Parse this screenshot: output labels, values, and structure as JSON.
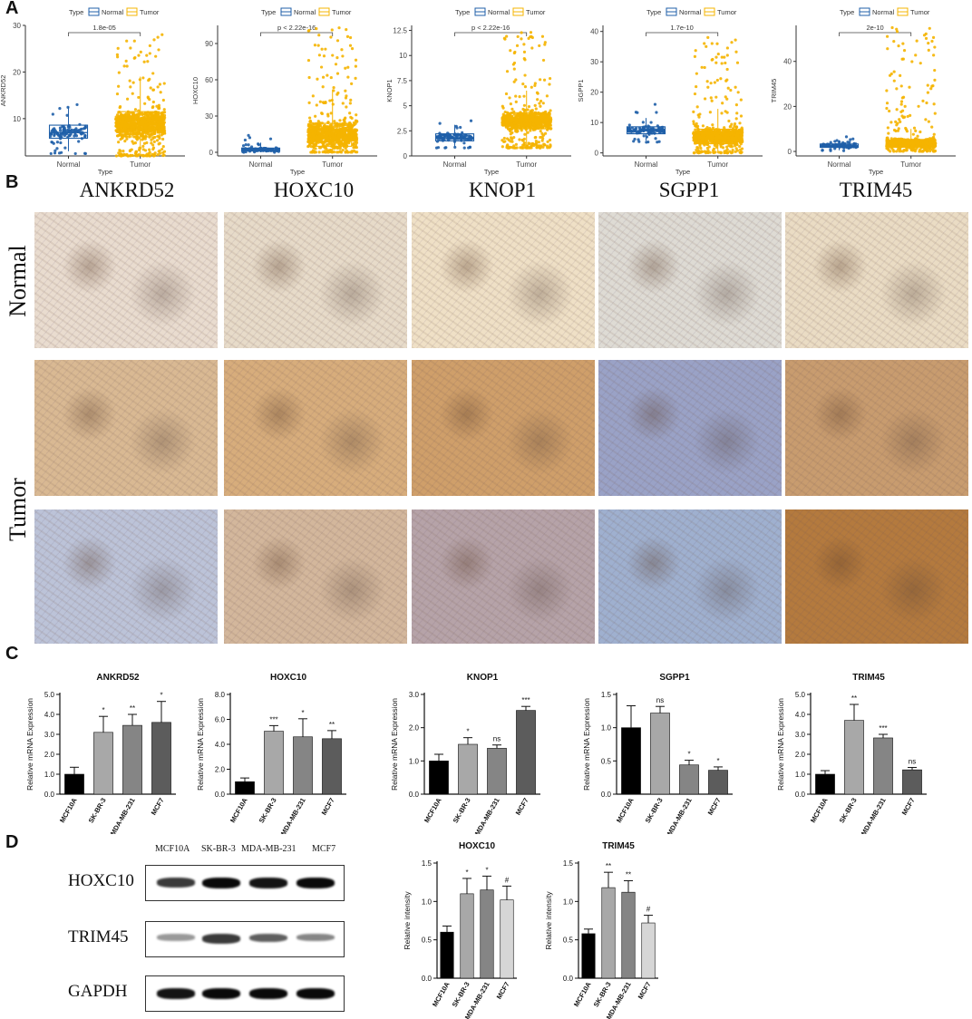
{
  "panels": {
    "A": "A",
    "B": "B",
    "C": "C",
    "D": "D"
  },
  "colors": {
    "normal": "#1f5fa8",
    "tumor": "#f5b400"
  },
  "panelA": {
    "legend_title": "Type",
    "legend_normal": "Normal",
    "legend_tumor": "Tumor",
    "xlabel": "Type",
    "plots": [
      {
        "gene": "ANKRD52",
        "ylabel": "ANKRD52",
        "pval": "1.8e-05",
        "yticks": [
          10,
          20,
          30
        ],
        "ylim": [
          2,
          30
        ],
        "normal": {
          "q1": 5.8,
          "median": 7.0,
          "q3": 8.6,
          "wmin": 3.0,
          "wmax": 12.5,
          "points_min": 2.5,
          "points_max": 13.0
        },
        "tumor": {
          "q1": 6.1,
          "median": 8.7,
          "q3": 11.5,
          "wmin": 2.5,
          "wmax": 19.0,
          "points_min": 2.0,
          "points_max": 28.0
        }
      },
      {
        "gene": "HOXC10",
        "ylabel": "HOXC10",
        "pval": "p < 2.22e-16",
        "yticks": [
          0,
          30,
          60,
          90
        ],
        "ylim": [
          -3,
          105
        ],
        "normal": {
          "q1": 1.0,
          "median": 2.0,
          "q3": 3.5,
          "wmin": 0,
          "wmax": 8.0,
          "points_min": 0,
          "points_max": 14.0
        },
        "tumor": {
          "q1": 5.0,
          "median": 12.0,
          "q3": 24.0,
          "wmin": 0,
          "wmax": 52.0,
          "points_min": 0,
          "points_max": 103.0
        }
      },
      {
        "gene": "KNOP1",
        "ylabel": "KNOP1",
        "pval": "p < 2.22e-16",
        "yticks": [
          0.0,
          2.5,
          5.0,
          7.5,
          10.0,
          12.5
        ],
        "ylim": [
          0,
          13
        ],
        "normal": {
          "q1": 1.5,
          "median": 1.8,
          "q3": 2.2,
          "wmin": 0.9,
          "wmax": 3.1,
          "points_min": 0.8,
          "points_max": 3.5
        },
        "tumor": {
          "q1": 2.7,
          "median": 3.5,
          "q3": 4.3,
          "wmin": 1.0,
          "wmax": 6.5,
          "points_min": 0.8,
          "points_max": 12.3
        }
      },
      {
        "gene": "SGPP1",
        "ylabel": "SGPP1",
        "pval": "1.7e-10",
        "yticks": [
          0,
          10,
          20,
          30,
          40
        ],
        "ylim": [
          -1,
          42
        ],
        "normal": {
          "q1": 6.3,
          "median": 7.3,
          "q3": 8.6,
          "wmin": 4.0,
          "wmax": 11.5,
          "points_min": 3.5,
          "points_max": 16.0
        },
        "tumor": {
          "q1": 3.0,
          "median": 5.0,
          "q3": 7.8,
          "wmin": 0,
          "wmax": 14.5,
          "points_min": 0,
          "points_max": 38.0
        }
      },
      {
        "gene": "TRIM45",
        "ylabel": "TRIM45",
        "pval": "2e-10",
        "yticks": [
          0,
          20,
          40
        ],
        "ylim": [
          -2,
          56
        ],
        "normal": {
          "q1": 1.8,
          "median": 2.5,
          "q3": 3.3,
          "wmin": 0.5,
          "wmax": 5.0,
          "points_min": 0.3,
          "points_max": 6.5
        },
        "tumor": {
          "q1": 2.0,
          "median": 3.5,
          "q3": 5.3,
          "wmin": 0,
          "wmax": 10.0,
          "points_min": 0,
          "points_max": 55.0
        }
      }
    ]
  },
  "panelB": {
    "genes": [
      "ANKRD52",
      "HOXC10",
      "KNOP1",
      "SGPP1",
      "TRIM45"
    ],
    "row_normal": "Normal",
    "row_tumor": "Tumor",
    "tile_colors": [
      [
        "#e9dccf",
        "#e7dbc9",
        "#efe0c6",
        "#dedbd4",
        "#eadcc4"
      ],
      [
        "#d9b993",
        "#d7ad7c",
        "#cf9f6a",
        "#9aa2c6",
        "#c89c6f"
      ],
      [
        "#bcc3d8",
        "#d3b79c",
        "#b6a3a8",
        "#9fb0cf",
        "#b47a3e"
      ]
    ]
  },
  "panelC": {
    "ylabel": "Relative mRNA Expression",
    "categories": [
      "MCF10A",
      "SK-BR-3",
      "MDA-MB-231",
      "MCF7"
    ],
    "bar_colors": [
      "#000000",
      "#a8a8a8",
      "#858585",
      "#5c5c5c"
    ],
    "charts": [
      {
        "title": "ANKRD52",
        "yticks": [
          "0.0",
          "1.0",
          "2.0",
          "3.0",
          "4.0",
          "5.0"
        ],
        "ylim": [
          0,
          5
        ],
        "values": [
          1.0,
          3.1,
          3.45,
          3.6
        ],
        "errors": [
          0.35,
          0.8,
          0.55,
          1.05
        ],
        "sig": [
          "",
          "*",
          "**",
          "*"
        ]
      },
      {
        "title": "HOXC10",
        "yticks": [
          "0.0",
          "2.0",
          "4.0",
          "6.0",
          "8.0"
        ],
        "ylim": [
          0,
          8
        ],
        "values": [
          1.0,
          5.05,
          4.6,
          4.45
        ],
        "errors": [
          0.3,
          0.45,
          1.45,
          0.65
        ],
        "sig": [
          "",
          "***",
          "*",
          "**"
        ]
      },
      {
        "title": "KNOP1",
        "yticks": [
          "0.0",
          "1.0",
          "2.0",
          "3.0"
        ],
        "ylim": [
          0,
          3
        ],
        "values": [
          1.0,
          1.5,
          1.38,
          2.52
        ],
        "errors": [
          0.2,
          0.2,
          0.1,
          0.12
        ],
        "sig": [
          "",
          "*",
          "ns",
          "***"
        ]
      },
      {
        "title": "SGPP1",
        "yticks": [
          "0.0",
          "0.5",
          "1.0",
          "1.5"
        ],
        "ylim": [
          0,
          1.5
        ],
        "values": [
          1.0,
          1.22,
          0.44,
          0.36
        ],
        "errors": [
          0.33,
          0.1,
          0.07,
          0.05
        ],
        "sig": [
          "",
          "ns",
          "*",
          "*"
        ]
      },
      {
        "title": "TRIM45",
        "yticks": [
          "0.0",
          "1.0",
          "2.0",
          "3.0",
          "4.0",
          "5.0"
        ],
        "ylim": [
          0,
          5
        ],
        "values": [
          1.0,
          3.7,
          2.82,
          1.22
        ],
        "errors": [
          0.18,
          0.8,
          0.18,
          0.12
        ],
        "sig": [
          "",
          "**",
          "***",
          "ns"
        ]
      }
    ]
  },
  "panelD": {
    "lanes": [
      "MCF10A",
      "SK-BR-3",
      "MDA-MB-231",
      "MCF7"
    ],
    "rows": [
      "HOXC10",
      "TRIM45",
      "GAPDH"
    ],
    "band_intensity": [
      [
        0.75,
        1.0,
        0.95,
        1.0
      ],
      [
        0.25,
        0.75,
        0.55,
        0.35
      ],
      [
        0.95,
        1.0,
        1.0,
        1.0
      ]
    ],
    "ylabel": "Relative intensity",
    "categories": [
      "MCF10A",
      "SK-BR-3",
      "MDA-MB-231",
      "MCF7"
    ],
    "bar_colors": [
      "#000000",
      "#a8a8a8",
      "#858585",
      "#d6d6d6"
    ],
    "charts": [
      {
        "title": "HOXC10",
        "yticks": [
          "0.0",
          "0.5",
          "1.0",
          "1.5"
        ],
        "ylim": [
          0,
          1.5
        ],
        "values": [
          0.6,
          1.1,
          1.15,
          1.02
        ],
        "errors": [
          0.08,
          0.2,
          0.18,
          0.18
        ],
        "sig": [
          "",
          "*",
          "*",
          "#"
        ]
      },
      {
        "title": "TRIM45",
        "yticks": [
          "0.0",
          "0.5",
          "1.0",
          "1.5"
        ],
        "ylim": [
          0,
          1.5
        ],
        "values": [
          0.58,
          1.18,
          1.12,
          0.72
        ],
        "errors": [
          0.06,
          0.2,
          0.15,
          0.1
        ],
        "sig": [
          "",
          "**",
          "**",
          "#"
        ]
      }
    ]
  }
}
